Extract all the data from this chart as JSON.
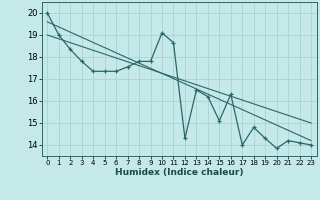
{
  "xlabel": "Humidex (Indice chaleur)",
  "background_color": "#c5e8e8",
  "grid_color": "#b0d5d5",
  "line_color": "#2a6868",
  "xlim": [
    -0.5,
    23.5
  ],
  "ylim": [
    13.5,
    20.5
  ],
  "xticks": [
    0,
    1,
    2,
    3,
    4,
    5,
    6,
    7,
    8,
    9,
    10,
    11,
    12,
    13,
    14,
    15,
    16,
    17,
    18,
    19,
    20,
    21,
    22,
    23
  ],
  "yticks": [
    14,
    15,
    16,
    17,
    18,
    19,
    20
  ],
  "data_x": [
    0,
    1,
    2,
    3,
    4,
    5,
    6,
    7,
    8,
    9,
    10,
    11,
    12,
    13,
    14,
    15,
    16,
    17,
    18,
    19,
    20,
    21,
    22,
    23
  ],
  "data_y": [
    20.0,
    19.0,
    18.35,
    17.8,
    17.35,
    17.35,
    17.35,
    17.55,
    17.8,
    17.8,
    19.1,
    18.65,
    14.3,
    16.5,
    16.2,
    15.1,
    16.3,
    14.0,
    14.8,
    14.3,
    13.85,
    14.2,
    14.1,
    14.0
  ],
  "trend1_x": [
    0,
    23
  ],
  "trend1_y": [
    19.6,
    14.2
  ],
  "trend2_x": [
    0,
    23
  ],
  "trend2_y": [
    19.0,
    15.0
  ]
}
